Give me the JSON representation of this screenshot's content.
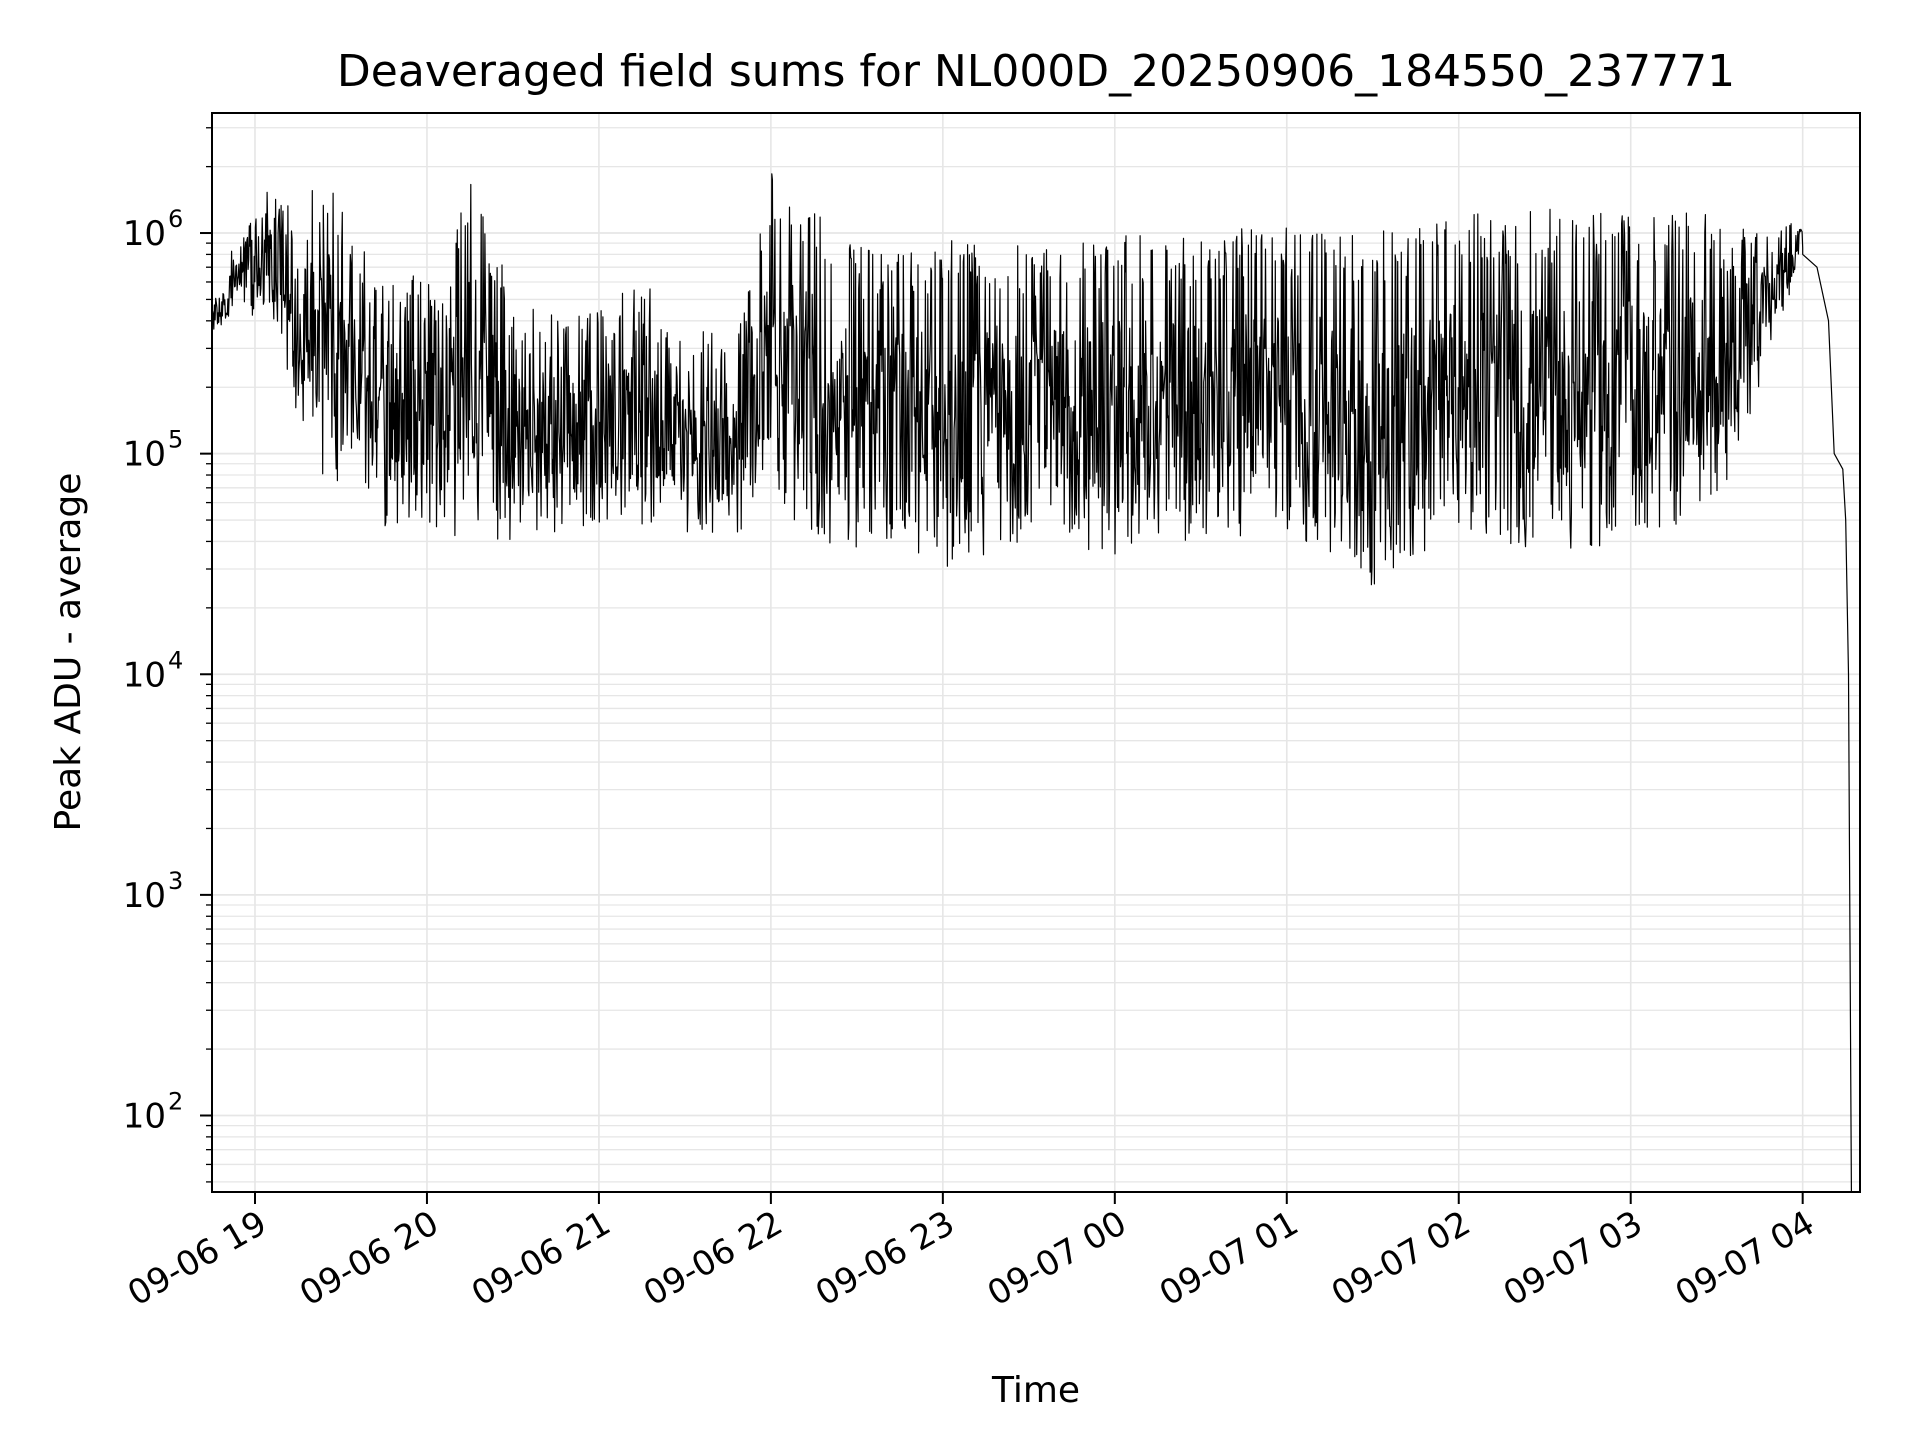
{
  "chart_data": {
    "type": "line",
    "title": "Deaveraged field sums for NL000D_20250906_184550_237771",
    "xlabel": "Time",
    "ylabel": "Peak ADU - average",
    "y_scale": "log",
    "x_range": [
      "09-06 18:45",
      "09-07 04:20"
    ],
    "ylim": [
      45,
      3500000
    ],
    "grid": true,
    "line_color": "#000000",
    "x_ticks": [
      {
        "label": "09-06 19",
        "hour": 19
      },
      {
        "label": "09-06 20",
        "hour": 20
      },
      {
        "label": "09-06 21",
        "hour": 21
      },
      {
        "label": "09-06 22",
        "hour": 22
      },
      {
        "label": "09-06 23",
        "hour": 23
      },
      {
        "label": "09-07 00",
        "hour": 24
      },
      {
        "label": "09-07 01",
        "hour": 25
      },
      {
        "label": "09-07 02",
        "hour": 26
      },
      {
        "label": "09-07 03",
        "hour": 27
      },
      {
        "label": "09-07 04",
        "hour": 28
      }
    ],
    "y_ticks": [
      {
        "base": "10",
        "exp": "2",
        "value": 100
      },
      {
        "base": "10",
        "exp": "3",
        "value": 1000
      },
      {
        "base": "10",
        "exp": "4",
        "value": 10000
      },
      {
        "base": "10",
        "exp": "5",
        "value": 100000
      },
      {
        "base": "10",
        "exp": "6",
        "value": 1000000
      }
    ],
    "series": [
      {
        "envelope": [
          {
            "t": "09-06 18:45",
            "hi": 550000,
            "lo": 300000
          },
          {
            "t": "09-06 18:50",
            "hi": 650000,
            "lo": 380000
          },
          {
            "t": "09-06 18:55",
            "hi": 1400000,
            "lo": 450000
          },
          {
            "t": "09-06 19:05",
            "hi": 1600000,
            "lo": 350000
          },
          {
            "t": "09-06 19:15",
            "hi": 1200000,
            "lo": 150000
          },
          {
            "t": "09-06 19:25",
            "hi": 2200000,
            "lo": 70000
          },
          {
            "t": "09-06 19:35",
            "hi": 1000000,
            "lo": 80000
          },
          {
            "t": "09-06 19:45",
            "hi": 700000,
            "lo": 45000
          },
          {
            "t": "09-06 19:55",
            "hi": 650000,
            "lo": 50000
          },
          {
            "t": "09-06 20:05",
            "hi": 600000,
            "lo": 45000
          },
          {
            "t": "09-06 20:15",
            "hi": 2100000,
            "lo": 40000
          },
          {
            "t": "09-06 20:30",
            "hi": 500000,
            "lo": 40000
          },
          {
            "t": "09-06 20:50",
            "hi": 400000,
            "lo": 45000
          },
          {
            "t": "09-06 21:10",
            "hi": 600000,
            "lo": 50000
          },
          {
            "t": "09-06 21:30",
            "hi": 500000,
            "lo": 40000
          },
          {
            "t": "09-06 21:45",
            "hi": 300000,
            "lo": 40000
          },
          {
            "t": "09-06 22:00",
            "hi": 2000000,
            "lo": 60000
          },
          {
            "t": "09-06 22:15",
            "hi": 1400000,
            "lo": 40000
          },
          {
            "t": "09-06 22:30",
            "hi": 900000,
            "lo": 35000
          },
          {
            "t": "09-06 22:45",
            "hi": 800000,
            "lo": 40000
          },
          {
            "t": "09-06 23:00",
            "hi": 1000000,
            "lo": 30000
          },
          {
            "t": "09-06 23:30",
            "hi": 900000,
            "lo": 40000
          },
          {
            "t": "09-07 00:00",
            "hi": 1000000,
            "lo": 35000
          },
          {
            "t": "09-07 00:30",
            "hi": 1000000,
            "lo": 40000
          },
          {
            "t": "09-07 01:00",
            "hi": 1100000,
            "lo": 45000
          },
          {
            "t": "09-07 01:30",
            "hi": 1000000,
            "lo": 25000
          },
          {
            "t": "09-07 02:00",
            "hi": 1200000,
            "lo": 45000
          },
          {
            "t": "09-07 02:30",
            "hi": 1300000,
            "lo": 35000
          },
          {
            "t": "09-07 03:00",
            "hi": 1300000,
            "lo": 40000
          },
          {
            "t": "09-07 03:30",
            "hi": 1200000,
            "lo": 55000
          },
          {
            "t": "09-07 03:50",
            "hi": 1000000,
            "lo": 300000
          },
          {
            "t": "09-07 04:00",
            "hi": 1800000,
            "lo": 700000
          }
        ],
        "tail": [
          {
            "t": "09-07 04:00",
            "v": 800000
          },
          {
            "t": "09-07 04:05",
            "v": 700000
          },
          {
            "t": "09-07 04:09",
            "v": 400000
          },
          {
            "t": "09-07 04:11",
            "v": 100000
          },
          {
            "t": "09-07 04:14",
            "v": 85000
          },
          {
            "t": "09-07 04:15",
            "v": 50000
          },
          {
            "t": "09-07 04:16",
            "v": 10000
          },
          {
            "t": "09-07 04:17",
            "v": 45
          }
        ]
      }
    ]
  }
}
